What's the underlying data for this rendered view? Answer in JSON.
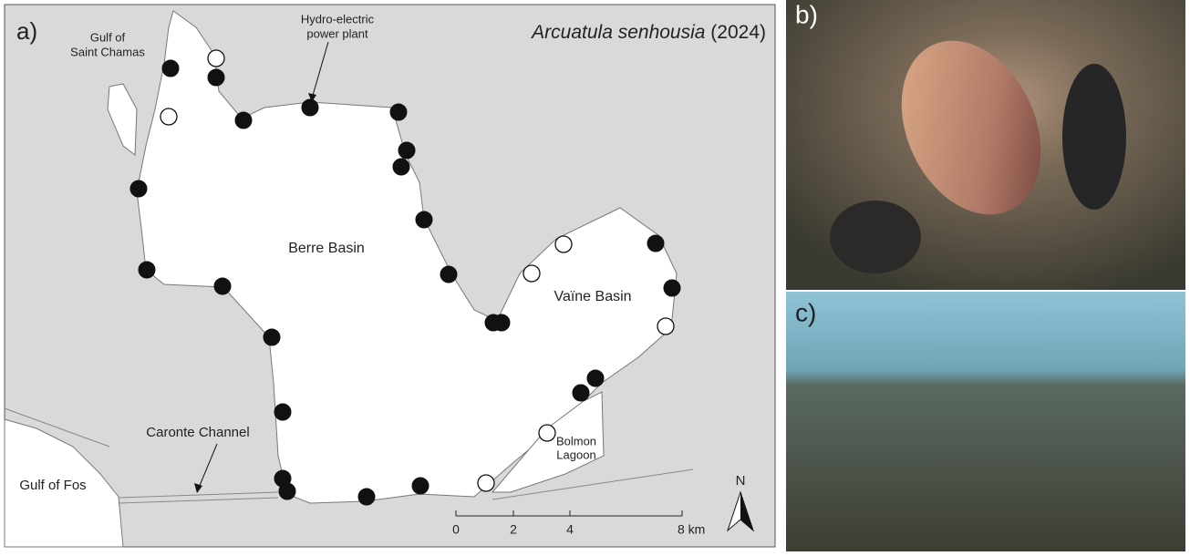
{
  "panel_a": {
    "label": "a)",
    "title": {
      "species": "Arcuatula senhousia",
      "year": "(2024)"
    },
    "places": {
      "saint_chamas": [
        "Gulf of",
        "Saint Chamas"
      ],
      "hydro": [
        "Hydro-electric",
        "power plant"
      ],
      "berre": "Berre Basin",
      "vaine": "Vaïne Basin",
      "caronte": "Caronte Channel",
      "bolmon": [
        "Bolmon",
        "Lagoon"
      ],
      "fos": "Gulf of Fos"
    },
    "scale": [
      "0",
      "2",
      "4",
      "8 km"
    ],
    "north": "N"
  },
  "panel_b": {
    "label": "b)"
  },
  "panel_c": {
    "label": "c)"
  }
}
